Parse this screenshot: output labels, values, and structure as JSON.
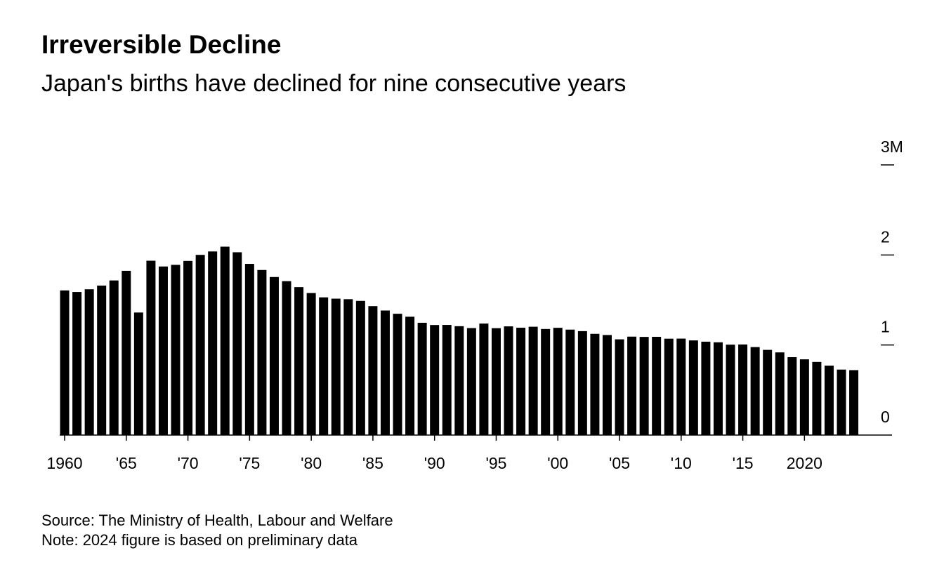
{
  "chart_data": {
    "type": "bar",
    "title": "Irreversible Decline",
    "subtitle": "Japan's births have declined for nine consecutive years",
    "source": "Source: The Ministry of Health, Labour and Welfare",
    "note": "Note: 2024 figure is based on preliminary data",
    "color": "#000000",
    "x": [
      1960,
      1961,
      1962,
      1963,
      1964,
      1965,
      1966,
      1967,
      1968,
      1969,
      1970,
      1971,
      1972,
      1973,
      1974,
      1975,
      1976,
      1977,
      1978,
      1979,
      1980,
      1981,
      1982,
      1983,
      1984,
      1985,
      1986,
      1987,
      1988,
      1989,
      1990,
      1991,
      1992,
      1993,
      1994,
      1995,
      1996,
      1997,
      1998,
      1999,
      2000,
      2001,
      2002,
      2003,
      2004,
      2005,
      2006,
      2007,
      2008,
      2009,
      2010,
      2011,
      2012,
      2013,
      2014,
      2015,
      2016,
      2017,
      2018,
      2019,
      2020,
      2021,
      2022,
      2023,
      2024
    ],
    "values": [
      1.606,
      1.589,
      1.619,
      1.66,
      1.717,
      1.824,
      1.361,
      1.936,
      1.872,
      1.89,
      1.934,
      2.001,
      2.039,
      2.092,
      2.03,
      1.901,
      1.833,
      1.755,
      1.709,
      1.643,
      1.577,
      1.529,
      1.515,
      1.509,
      1.49,
      1.432,
      1.383,
      1.347,
      1.314,
      1.247,
      1.222,
      1.223,
      1.209,
      1.188,
      1.238,
      1.187,
      1.207,
      1.192,
      1.203,
      1.178,
      1.191,
      1.171,
      1.154,
      1.124,
      1.111,
      1.063,
      1.093,
      1.09,
      1.091,
      1.07,
      1.071,
      1.051,
      1.037,
      1.03,
      1.004,
      1.006,
      0.977,
      0.946,
      0.918,
      0.865,
      0.841,
      0.812,
      0.771,
      0.727,
      0.721
    ],
    "xlim": [
      1959.6,
      2027.1
    ],
    "xticks": [
      1960,
      {
        "value": 1965,
        "label": "'65"
      },
      {
        "value": 1970,
        "label": "'70"
      },
      {
        "value": 1975,
        "label": "'75"
      },
      {
        "value": 1980,
        "label": "'80"
      },
      {
        "value": 1985,
        "label": "'85"
      },
      {
        "value": 1990,
        "label": "'90"
      },
      {
        "value": 1995,
        "label": "'95"
      },
      {
        "value": 2000,
        "label": "'00"
      },
      {
        "value": 2005,
        "label": "'05"
      },
      {
        "value": 2010,
        "label": "'10"
      },
      {
        "value": 2015,
        "label": "'15"
      },
      2020
    ],
    "ylim": [
      0,
      3
    ],
    "yticks": [
      0,
      1,
      2,
      {
        "value": 3,
        "label": "3M"
      }
    ]
  }
}
